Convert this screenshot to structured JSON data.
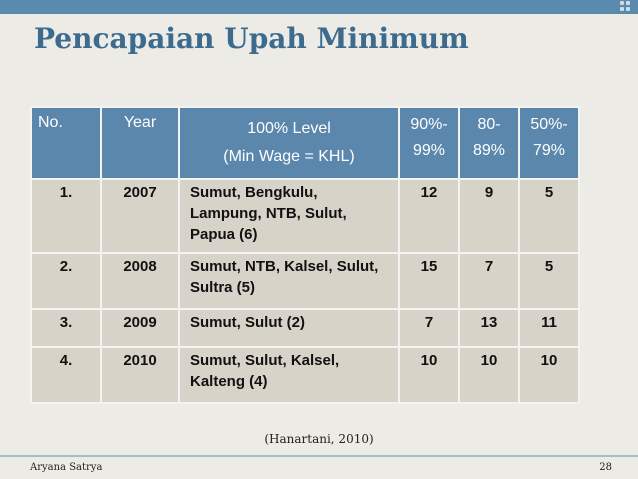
{
  "slide": {
    "title": "Pencapaian Upah Minimum",
    "citation": "(Hanartani, 2010)",
    "footer_author": "Aryana Satrya",
    "page_number": "28"
  },
  "table": {
    "headers": {
      "no": "No.",
      "year": "Year",
      "level_line1": "100% Level",
      "level_line2": "(Min Wage = KHL)",
      "c90_line1": "90%-",
      "c90_line2": "99%",
      "c80_line1": "80-",
      "c80_line2": "89%",
      "c50_line1": "50%-",
      "c50_line2": "79%"
    },
    "rows": [
      {
        "no": "1.",
        "year": "2007",
        "level": "Sumut, Bengkulu, Lampung, NTB, Sulut, Papua (6)",
        "c90": "12",
        "c80": "9",
        "c50": "5"
      },
      {
        "no": "2.",
        "year": "2008",
        "level": "Sumut, NTB, Kalsel, Sulut, Sultra (5)",
        "c90": "15",
        "c80": "7",
        "c50": "5"
      },
      {
        "no": "3.",
        "year": "2009",
        "level": "Sumut, Sulut (2)",
        "c90": "7",
        "c80": "13",
        "c50": "11"
      },
      {
        "no": "4.",
        "year": "2010",
        "level": "Sumut, Sulut, Kalsel, Kalteng (4)",
        "c90": "10",
        "c80": "10",
        "c50": "10"
      }
    ]
  },
  "colors": {
    "title": "#3d6b8e",
    "header_bg": "#5b87ad",
    "row_bg": "#d7d3c9",
    "top_band": "#5a8aad"
  }
}
